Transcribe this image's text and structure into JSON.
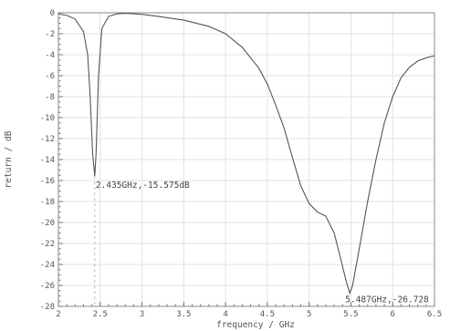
{
  "chart_data": {
    "type": "line",
    "title": "",
    "xlabel": "frequency / GHz",
    "ylabel": "return / dB",
    "xlim": [
      2,
      6.5
    ],
    "ylim": [
      -28,
      0
    ],
    "x_ticks": [
      "2",
      "2.5",
      "3",
      "3.5",
      "4",
      "4.5",
      "5",
      "5.5",
      "6",
      "6.5"
    ],
    "y_ticks": [
      "0",
      "-2",
      "-4",
      "-6",
      "-8",
      "-10",
      "-12",
      "-14",
      "-16",
      "-18",
      "-20",
      "-22",
      "-24",
      "-26",
      "-28"
    ],
    "grid": true,
    "series": [
      {
        "x": [
          2.0,
          2.1,
          2.2,
          2.3,
          2.35,
          2.38,
          2.41,
          2.435,
          2.45,
          2.48,
          2.52,
          2.6,
          2.7,
          2.8,
          3.0,
          3.2,
          3.5,
          3.8,
          4.0,
          4.2,
          4.4,
          4.5,
          4.6,
          4.7,
          4.8,
          4.9,
          5.0,
          5.1,
          5.2,
          5.3,
          5.4,
          5.45,
          5.487,
          5.52,
          5.6,
          5.7,
          5.8,
          5.9,
          6.0,
          6.1,
          6.2,
          6.3,
          6.4,
          6.5
        ],
        "y": [
          -0.1,
          -0.25,
          -0.6,
          -1.8,
          -4.0,
          -8.0,
          -13.5,
          -15.575,
          -13.5,
          -6.0,
          -1.5,
          -0.35,
          -0.1,
          -0.05,
          -0.15,
          -0.35,
          -0.7,
          -1.3,
          -2.0,
          -3.3,
          -5.3,
          -6.8,
          -8.8,
          -11.0,
          -13.8,
          -16.5,
          -18.2,
          -19.0,
          -19.4,
          -21.0,
          -24.2,
          -25.8,
          -26.728,
          -26.0,
          -22.5,
          -18.0,
          -14.0,
          -10.5,
          -8.0,
          -6.2,
          -5.2,
          -4.6,
          -4.3,
          -4.1
        ]
      }
    ],
    "marker": {
      "label": "2.435GHz,-15.575dB",
      "x": 2.435,
      "y": -15.575
    },
    "min_label": "5.487GHz,-26.728"
  }
}
